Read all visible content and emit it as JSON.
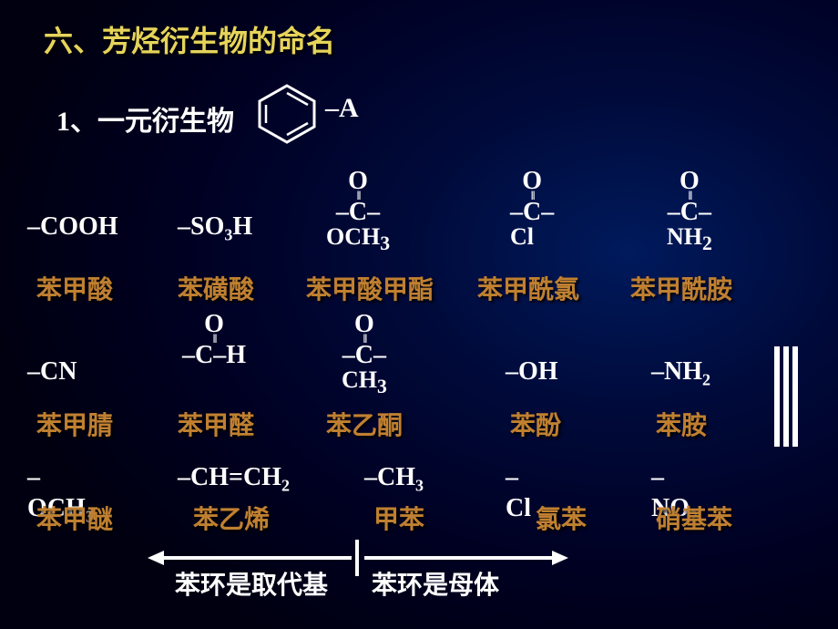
{
  "heading": "六、芳烃衍生物的命名",
  "subheading": "1、一元衍生物",
  "benzene_label": "–A",
  "row1": {
    "cooh": {
      "formula": "–COOH",
      "name": "苯甲酸"
    },
    "so3h": {
      "formula_html": "–SO<sub>3</sub>H",
      "name": "苯磺酸"
    },
    "ester": {
      "top": "O",
      "mid": "–C–",
      "bot_html": "OCH<sub>3</sub>",
      "name": "苯甲酸甲酯"
    },
    "acylcl": {
      "top": "O",
      "mid": "–C–",
      "bot": "Cl",
      "name": "苯甲酰氯"
    },
    "amide": {
      "top": "O",
      "mid": "–C–",
      "bot_html": "NH<sub>2</sub>",
      "name": "苯甲酰胺"
    }
  },
  "row2": {
    "cn": {
      "formula": "–CN",
      "name": "苯甲腈"
    },
    "cho": {
      "top": "O",
      "mid": "–C–H",
      "name": "苯甲醛"
    },
    "ketone": {
      "top": "O",
      "mid": "–C–",
      "bot_html": "CH<sub>3</sub>",
      "name": "苯乙酮"
    },
    "oh": {
      "formula": "–OH",
      "name": "苯酚"
    },
    "nh2": {
      "formula_html": "–NH<sub>2</sub>",
      "name": "苯胺"
    }
  },
  "row3": {
    "och3": {
      "formula_line1": "–",
      "formula_line2_html": "OCH<sub>3</sub>",
      "name": "苯甲醚"
    },
    "vinyl": {
      "formula_html": "–CH=CH<sub>2</sub>",
      "name": "苯乙烯"
    },
    "ch3": {
      "formula_html": "–CH<sub>3</sub>",
      "name": "甲苯"
    },
    "cl": {
      "formula_line1": "–",
      "formula_line2": "Cl",
      "name": "氯苯"
    },
    "no2": {
      "formula_line1": "–",
      "formula_line2_html": "NO<sub>2</sub>",
      "name": "硝基苯"
    }
  },
  "footer": {
    "left": "苯环是取代基",
    "right": "苯环是母体"
  },
  "colors": {
    "heading": "#e6d45a",
    "name": "#c08030",
    "text": "#ffffff",
    "bg_center": "#001a5c",
    "bg_edge": "#000011"
  }
}
